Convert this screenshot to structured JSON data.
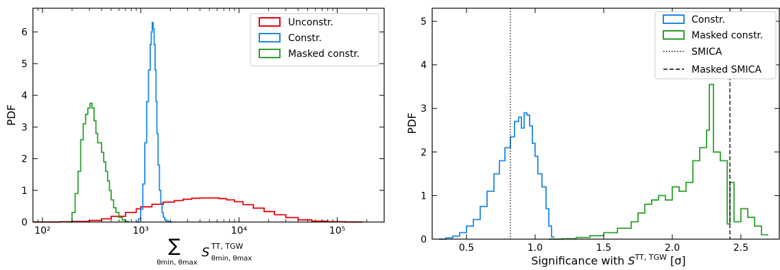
{
  "chart_data": [
    {
      "type": "histogram",
      "xscale": "log",
      "xlim": [
        80,
        300000
      ],
      "ylim": [
        0,
        6.75
      ],
      "ylabel": "PDF",
      "xlabel_sum": "∑",
      "xlabel_sum_sub": "θmin, θmax",
      "xlabel_S": "S",
      "xlabel_S_sup": "TT, TGW",
      "xlabel_S_sub": "θmin, θmax",
      "xticks": [
        {
          "value": 100,
          "label": "10²"
        },
        {
          "value": 1000,
          "label": "10³"
        },
        {
          "value": 10000,
          "label": "10⁴"
        },
        {
          "value": 100000,
          "label": "10⁵"
        }
      ],
      "yticks": [
        0,
        1,
        2,
        3,
        4,
        5,
        6
      ],
      "legend_loc": "upper right",
      "series": [
        {
          "name": "Unconstr.",
          "color": "#e8000b",
          "x": [
            80,
            150,
            200,
            300,
            400,
            500,
            700,
            900,
            1000,
            1300,
            1700,
            2200,
            2700,
            3300,
            4000,
            5000,
            6300,
            7500,
            9000,
            11000,
            14000,
            18000,
            23000,
            30000,
            40000,
            55000,
            80000,
            120000,
            180000
          ],
          "y": [
            0,
            0.01,
            0.02,
            0.05,
            0.1,
            0.18,
            0.3,
            0.42,
            0.48,
            0.56,
            0.63,
            0.68,
            0.72,
            0.75,
            0.76,
            0.76,
            0.74,
            0.7,
            0.64,
            0.55,
            0.44,
            0.33,
            0.23,
            0.14,
            0.07,
            0.03,
            0.01,
            0.0,
            0
          ]
        },
        {
          "name": "Constr.",
          "color": "#1e88e5",
          "x": [
            900,
            950,
            1000,
            1050,
            1100,
            1150,
            1200,
            1250,
            1280,
            1310,
            1340,
            1370,
            1400,
            1430,
            1460,
            1500,
            1550,
            1600,
            1650,
            1700,
            1750,
            1800,
            1900,
            2000,
            2100
          ],
          "y": [
            0,
            0.1,
            0.4,
            1.2,
            2.5,
            3.8,
            4.8,
            5.6,
            6.0,
            6.3,
            6.1,
            5.6,
            4.8,
            3.8,
            2.8,
            1.8,
            1.0,
            0.6,
            0.3,
            0.15,
            0.08,
            0.04,
            0.01,
            0,
            0
          ]
        },
        {
          "name": "Masked constr.",
          "color": "#2ca02c",
          "x": [
            180,
            200,
            215,
            230,
            245,
            260,
            275,
            290,
            305,
            320,
            335,
            350,
            365,
            380,
            400,
            420,
            440,
            460,
            480,
            500,
            530,
            560,
            600,
            650,
            700,
            760
          ],
          "y": [
            0,
            0.3,
            0.9,
            1.6,
            2.6,
            3.1,
            3.4,
            3.6,
            3.75,
            3.6,
            3.2,
            2.8,
            2.5,
            2.5,
            2.2,
            1.9,
            1.6,
            1.3,
            1.0,
            0.7,
            0.45,
            0.3,
            0.15,
            0.06,
            0.02,
            0
          ]
        }
      ]
    },
    {
      "type": "histogram",
      "xscale": "linear",
      "xlim": [
        0.25,
        2.78
      ],
      "ylim": [
        0,
        5.3
      ],
      "ylabel": "PDF",
      "xlabel": "Significance with S^{TT, TGW} [σ]",
      "xlabel_pre": "Significance with ",
      "xlabel_S": "S",
      "xlabel_S_sup": "TT, TGW",
      "xlabel_post": " [σ]",
      "xticks": [
        {
          "value": 0.5,
          "label": "0.5"
        },
        {
          "value": 1.0,
          "label": "1.0"
        },
        {
          "value": 1.5,
          "label": "1.5"
        },
        {
          "value": 2.0,
          "label": "2.0"
        },
        {
          "value": 2.5,
          "label": "2.5"
        }
      ],
      "yticks": [
        0,
        1,
        2,
        3,
        4,
        5
      ],
      "legend_loc": "upper right",
      "series": [
        {
          "name": "Constr.",
          "color": "#1e88e5",
          "x": [
            0.3,
            0.35,
            0.4,
            0.45,
            0.5,
            0.55,
            0.6,
            0.65,
            0.7,
            0.74,
            0.78,
            0.82,
            0.85,
            0.88,
            0.9,
            0.92,
            0.94,
            0.96,
            0.98,
            1.0,
            1.02,
            1.05,
            1.08,
            1.1,
            1.12,
            1.14
          ],
          "y": [
            0,
            0.03,
            0.07,
            0.15,
            0.3,
            0.45,
            0.75,
            1.1,
            1.5,
            1.8,
            2.1,
            2.35,
            2.7,
            2.8,
            2.55,
            2.9,
            2.85,
            2.6,
            2.2,
            1.9,
            1.5,
            1.2,
            0.7,
            0.3,
            0.05,
            0
          ]
        },
        {
          "name": "Masked constr.",
          "color": "#2ca02c",
          "x": [
            1.1,
            1.2,
            1.3,
            1.4,
            1.5,
            1.6,
            1.7,
            1.75,
            1.8,
            1.85,
            1.9,
            1.95,
            2.0,
            2.05,
            2.1,
            2.15,
            2.2,
            2.25,
            2.27,
            2.3,
            2.35,
            2.4,
            2.42,
            2.45,
            2.5,
            2.55,
            2.6,
            2.65,
            2.7
          ],
          "y": [
            0,
            0.01,
            0.04,
            0.08,
            0.15,
            0.25,
            0.4,
            0.6,
            0.8,
            0.9,
            1.0,
            0.9,
            1.2,
            1.1,
            1.3,
            1.8,
            2.1,
            2.5,
            3.55,
            2.0,
            1.8,
            0.35,
            1.3,
            0.4,
            0.7,
            0.5,
            0.3,
            0.1,
            0
          ]
        }
      ],
      "vlines": [
        {
          "name": "SMICA",
          "x": 0.82,
          "style": "dotted"
        },
        {
          "name": "Masked SMICA",
          "x": 2.42,
          "style": "dashed"
        }
      ]
    }
  ]
}
